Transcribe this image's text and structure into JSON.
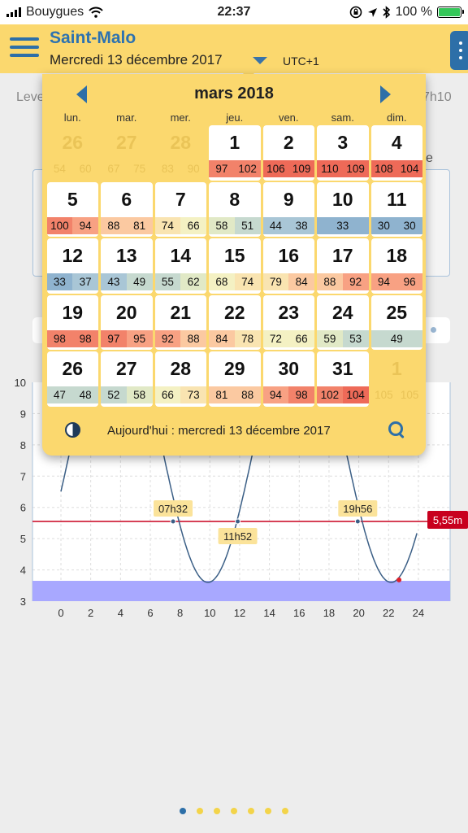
{
  "status_bar": {
    "carrier": "Bouygues",
    "time": "22:37",
    "battery_percent": "100 %"
  },
  "header": {
    "city": "Saint-Malo",
    "date": "Mercredi 13 décembre 2017",
    "timezone": "UTC+1"
  },
  "background": {
    "left_label": "Leve",
    "right_label": "7h10",
    "letter": "e"
  },
  "calendar": {
    "month_title": "mars 2018",
    "weekdays": [
      "lun.",
      "mar.",
      "mer.",
      "jeu.",
      "ven.",
      "sam.",
      "dim."
    ],
    "today_label": "Aujourd'hui : mercredi 13 décembre 2017",
    "days": [
      {
        "day": "26",
        "coefs": [
          "54",
          "60"
        ],
        "out": true
      },
      {
        "day": "27",
        "coefs": [
          "67",
          "75"
        ],
        "out": true
      },
      {
        "day": "28",
        "coefs": [
          "83",
          "90"
        ],
        "out": true
      },
      {
        "day": "1",
        "coefs": [
          "97",
          "102"
        ]
      },
      {
        "day": "2",
        "coefs": [
          "106",
          "109"
        ]
      },
      {
        "day": "3",
        "coefs": [
          "110",
          "109"
        ]
      },
      {
        "day": "4",
        "coefs": [
          "108",
          "104"
        ]
      },
      {
        "day": "5",
        "coefs": [
          "100",
          "94"
        ]
      },
      {
        "day": "6",
        "coefs": [
          "88",
          "81"
        ]
      },
      {
        "day": "7",
        "coefs": [
          "74",
          "66"
        ]
      },
      {
        "day": "8",
        "coefs": [
          "58",
          "51"
        ]
      },
      {
        "day": "9",
        "coefs": [
          "44",
          "38"
        ]
      },
      {
        "day": "10",
        "coefs": [
          "33"
        ]
      },
      {
        "day": "11",
        "coefs": [
          "30",
          "30"
        ]
      },
      {
        "day": "12",
        "coefs": [
          "33",
          "37"
        ]
      },
      {
        "day": "13",
        "coefs": [
          "43",
          "49"
        ]
      },
      {
        "day": "14",
        "coefs": [
          "55",
          "62"
        ]
      },
      {
        "day": "15",
        "coefs": [
          "68",
          "74"
        ]
      },
      {
        "day": "16",
        "coefs": [
          "79",
          "84"
        ]
      },
      {
        "day": "17",
        "coefs": [
          "88",
          "92"
        ]
      },
      {
        "day": "18",
        "coefs": [
          "94",
          "96"
        ]
      },
      {
        "day": "19",
        "coefs": [
          "98",
          "98"
        ]
      },
      {
        "day": "20",
        "coefs": [
          "97",
          "95"
        ]
      },
      {
        "day": "21",
        "coefs": [
          "92",
          "88"
        ]
      },
      {
        "day": "22",
        "coefs": [
          "84",
          "78"
        ]
      },
      {
        "day": "23",
        "coefs": [
          "72",
          "66"
        ]
      },
      {
        "day": "24",
        "coefs": [
          "59",
          "53"
        ]
      },
      {
        "day": "25",
        "coefs": [
          "49"
        ]
      },
      {
        "day": "26",
        "coefs": [
          "47",
          "48"
        ]
      },
      {
        "day": "27",
        "coefs": [
          "52",
          "58"
        ]
      },
      {
        "day": "28",
        "coefs": [
          "66",
          "73"
        ]
      },
      {
        "day": "29",
        "coefs": [
          "81",
          "88"
        ]
      },
      {
        "day": "30",
        "coefs": [
          "94",
          "98"
        ]
      },
      {
        "day": "31",
        "coefs": [
          "102",
          "104"
        ]
      },
      {
        "day": "1",
        "coefs": [
          "105",
          "105"
        ],
        "out": true
      }
    ]
  },
  "chart": {
    "y_ticks": [
      "3",
      "4",
      "5",
      "6",
      "7",
      "8",
      "9",
      "10"
    ],
    "x_ticks": [
      "0",
      "2",
      "4",
      "6",
      "8",
      "10",
      "12",
      "14",
      "16",
      "18",
      "20",
      "22",
      "24"
    ],
    "level_label": "5,55m",
    "level_value": 5.55,
    "markers": [
      {
        "label": "07h32",
        "hour": 7.53
      },
      {
        "label": "11h52",
        "hour": 11.87
      },
      {
        "label": "19h56",
        "hour": 19.93
      }
    ],
    "low_point_hour": 22.7,
    "low_point_height": 3.68,
    "shade_top": 3.65
  },
  "page_dots": {
    "count": 7,
    "active": 0
  },
  "colors": {
    "header": "#fbd86e",
    "accent_blue": "#2d6fa8",
    "level_red": "#c8001e",
    "shade": "#a8a8ff",
    "curve": "#3b5f86"
  }
}
